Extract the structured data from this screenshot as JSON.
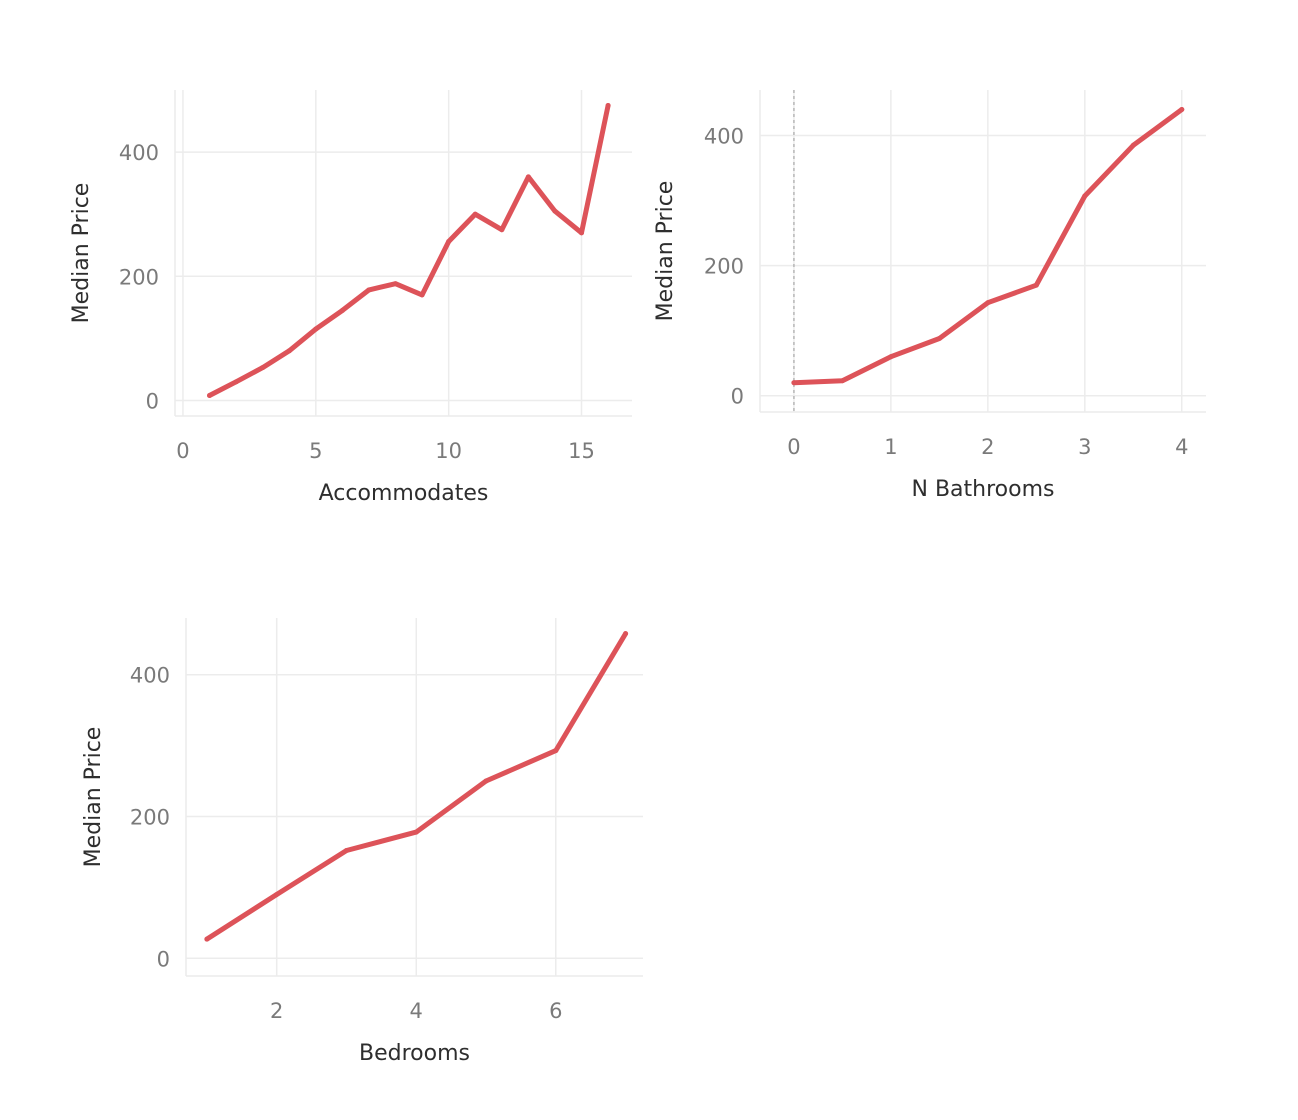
{
  "accent_color": "#dd5359",
  "chart_data": [
    {
      "type": "line",
      "xlabel": "Accommodates",
      "ylabel": "Median Price",
      "xlim": [
        -0.3,
        16.9
      ],
      "ylim": [
        -25,
        500
      ],
      "xticks": [
        0,
        5,
        10,
        15
      ],
      "yticks": [
        0,
        200,
        400
      ],
      "grid": true,
      "zero_line": false,
      "x": [
        1,
        2,
        3,
        4,
        5,
        6,
        7,
        8,
        9,
        10,
        11,
        12,
        13,
        14,
        15,
        16
      ],
      "y": [
        8,
        30,
        53,
        80,
        115,
        145,
        178,
        188,
        170,
        256,
        300,
        275,
        360,
        305,
        270,
        475
      ]
    },
    {
      "type": "line",
      "xlabel": "N Bathrooms",
      "ylabel": "Median Price",
      "xlim": [
        -0.35,
        4.25
      ],
      "ylim": [
        -25,
        470
      ],
      "xticks": [
        0,
        1,
        2,
        3,
        4
      ],
      "yticks": [
        0,
        200,
        400
      ],
      "grid": true,
      "zero_line": true,
      "x": [
        0,
        0.5,
        1,
        1.5,
        2,
        2.5,
        3,
        3.5,
        4
      ],
      "y": [
        20,
        23,
        60,
        88,
        143,
        170,
        307,
        385,
        440
      ]
    },
    {
      "type": "line",
      "xlabel": "Bedrooms",
      "ylabel": "Median Price",
      "xlim": [
        0.7,
        7.25
      ],
      "ylim": [
        -25,
        480
      ],
      "xticks": [
        2,
        4,
        6
      ],
      "yticks": [
        0,
        200,
        400
      ],
      "grid": true,
      "zero_line": false,
      "x": [
        1,
        2,
        3,
        4,
        5,
        6,
        7
      ],
      "y": [
        27,
        90,
        152,
        178,
        250,
        293,
        458
      ]
    }
  ]
}
